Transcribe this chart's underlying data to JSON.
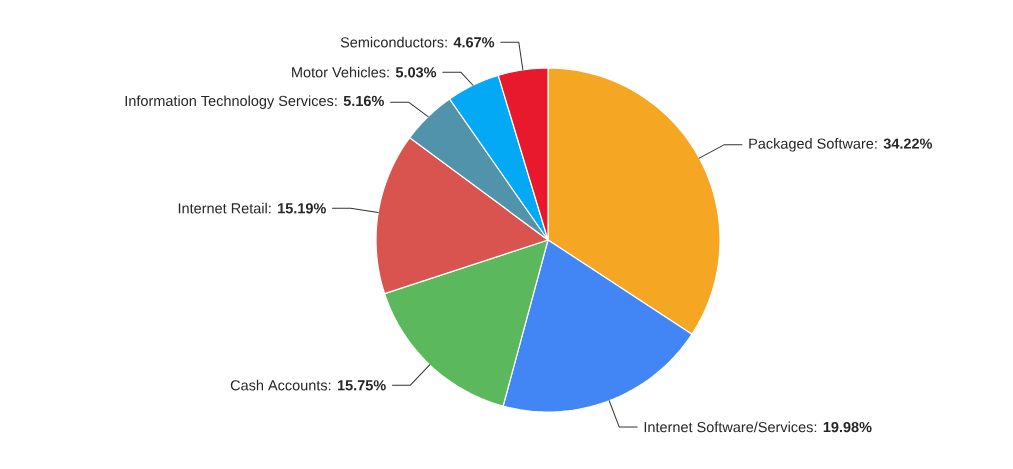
{
  "chart_data": {
    "type": "pie",
    "categories": [
      "Packaged Software",
      "Internet Software/Services",
      "Cash Accounts",
      "Internet Retail",
      "Information Technology Services",
      "Motor Vehicles",
      "Semiconductors"
    ],
    "values": [
      34.22,
      19.98,
      15.75,
      15.19,
      5.16,
      5.03,
      4.67
    ],
    "value_labels": [
      ": **34.22%**",
      ": **19.98%**",
      ": **15.75%**",
      ": **15.19%**",
      ": **5.16%**",
      ": **5.03%**",
      ": **4.67%**"
    ],
    "colors": [
      "#f5a623",
      "#4285f4",
      "#5cb85c",
      "#d9534f",
      "#5093aa",
      "#03a9f4",
      "#e8192c"
    ]
  }
}
